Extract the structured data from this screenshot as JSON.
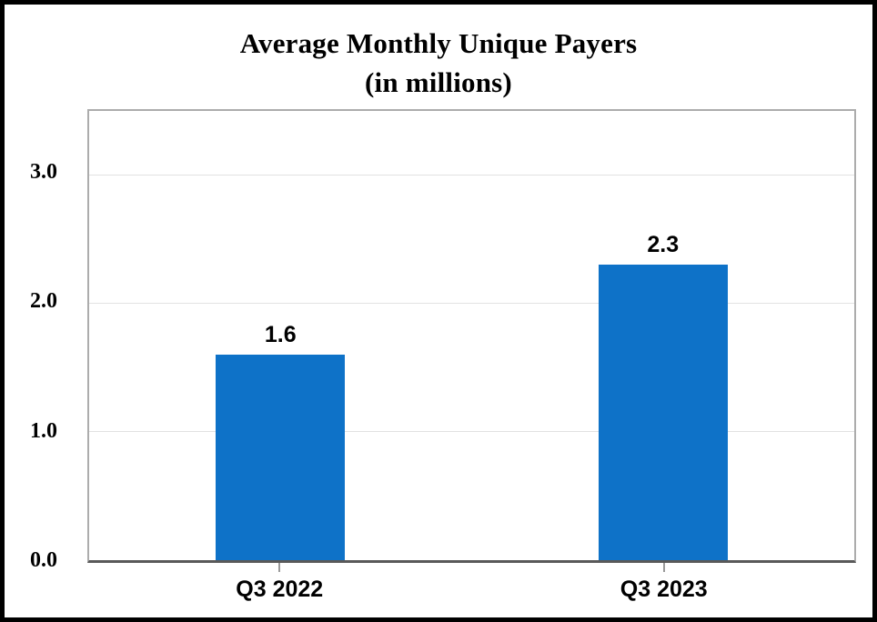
{
  "chart_data": {
    "type": "bar",
    "title": "Average Monthly Unique Payers",
    "subtitle": "(in millions)",
    "categories": [
      "Q3 2022",
      "Q3 2023"
    ],
    "series": [
      {
        "name": "Average Monthly Unique Payers",
        "values": [
          1.6,
          2.3
        ]
      }
    ],
    "data_labels": [
      "1.6",
      "2.3"
    ],
    "xlabel": "",
    "ylabel": "",
    "ylim": [
      0,
      3.5
    ],
    "yticks": [
      {
        "value": 0.0,
        "label": "0.0"
      },
      {
        "value": 1.0,
        "label": "1.0"
      },
      {
        "value": 2.0,
        "label": "2.0"
      },
      {
        "value": 3.0,
        "label": "3.0"
      }
    ],
    "grid": "horizontal-major",
    "legend": "none",
    "colors": {
      "bar": "#0E72C8",
      "gridline": "#E2E2E2",
      "plot_border": "#ACACAC",
      "axis_line": "#595959",
      "tick_mark": "#9A9A9A",
      "text": "#000000",
      "frame_border": "#000000",
      "background": "#FFFFFF"
    }
  }
}
